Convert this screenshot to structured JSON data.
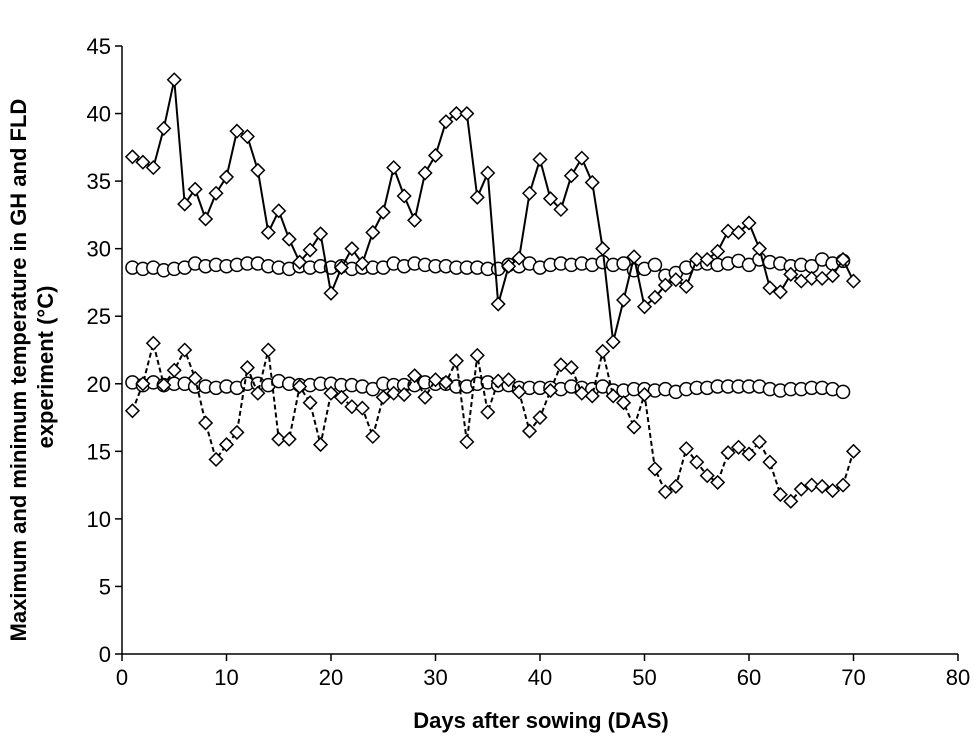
{
  "chart_data": {
    "type": "line",
    "xlabel": "Days after sowing (DAS)",
    "ylabel": [
      "Maximum and minimum temperature in GH and FLD",
      "experiment (°C)"
    ],
    "xlim": [
      0,
      80
    ],
    "ylim": [
      0,
      45
    ],
    "xticks": [
      0,
      10,
      20,
      30,
      40,
      50,
      60,
      70,
      80
    ],
    "yticks": [
      0,
      5,
      10,
      15,
      20,
      25,
      30,
      35,
      40,
      45
    ],
    "grid": false,
    "legend": "none",
    "series": [
      {
        "marker": "circle",
        "line": "solid",
        "x": [
          1,
          2,
          3,
          4,
          5,
          6,
          7,
          8,
          9,
          10,
          11,
          12,
          13,
          14,
          15,
          16,
          17,
          18,
          19,
          20,
          21,
          22,
          23,
          24,
          25,
          26,
          27,
          28,
          29,
          30,
          31,
          32,
          33,
          34,
          35,
          36,
          37,
          38,
          39,
          40,
          41,
          42,
          43,
          44,
          45,
          46,
          47,
          48,
          49,
          50,
          51,
          52,
          53,
          54,
          55,
          56,
          57,
          58,
          59,
          60,
          61,
          62,
          63,
          64,
          65,
          66,
          67,
          68,
          69
        ],
        "y": [
          28.6,
          28.5,
          28.6,
          28.4,
          28.5,
          28.6,
          28.9,
          28.7,
          28.8,
          28.7,
          28.8,
          28.9,
          28.9,
          28.7,
          28.6,
          28.5,
          28.7,
          28.6,
          28.7,
          28.6,
          28.7,
          28.5,
          28.6,
          28.6,
          28.6,
          28.9,
          28.7,
          28.9,
          28.8,
          28.7,
          28.7,
          28.6,
          28.6,
          28.6,
          28.5,
          28.5,
          28.8,
          28.7,
          28.9,
          28.6,
          28.8,
          28.9,
          28.8,
          28.9,
          28.8,
          29.0,
          28.8,
          28.9,
          28.4,
          28.5,
          28.8,
          28.0,
          28.2,
          28.6,
          28.9,
          28.9,
          28.8,
          28.9,
          29.1,
          28.8,
          29.2,
          29.0,
          28.9,
          28.7,
          28.8,
          28.7,
          29.2,
          28.9,
          29.1
        ]
      },
      {
        "marker": "diamond",
        "line": "solid",
        "x": [
          1,
          2,
          3,
          4,
          5,
          6,
          7,
          8,
          9,
          10,
          11,
          12,
          13,
          14,
          15,
          16,
          17,
          18,
          19,
          20,
          21,
          22,
          23,
          24,
          25,
          26,
          27,
          28,
          29,
          30,
          31,
          32,
          33,
          34,
          35,
          36,
          37,
          38,
          39,
          40,
          41,
          42,
          43,
          44,
          45,
          46,
          47,
          48,
          49,
          50,
          51,
          52,
          53,
          54,
          55,
          56,
          57,
          58,
          59,
          60,
          61,
          62,
          63,
          64,
          65,
          66,
          67,
          68,
          69,
          70
        ],
        "y": [
          36.8,
          36.4,
          36.0,
          38.9,
          42.5,
          33.3,
          34.4,
          32.2,
          34.1,
          35.3,
          38.7,
          38.3,
          35.8,
          31.2,
          32.8,
          30.7,
          29.0,
          29.9,
          31.1,
          26.7,
          28.6,
          30.0,
          28.9,
          31.2,
          32.7,
          36.0,
          33.9,
          32.1,
          35.6,
          36.9,
          39.4,
          40.0,
          40.0,
          33.8,
          35.6,
          25.9,
          28.7,
          29.3,
          34.1,
          36.6,
          33.7,
          32.9,
          35.4,
          36.7,
          34.9,
          30.0,
          23.1,
          26.2,
          29.4,
          25.7,
          26.4,
          27.3,
          27.7,
          27.2,
          29.2,
          29.2,
          29.8,
          31.3,
          31.2,
          31.9,
          30.0,
          27.1,
          26.8,
          28.1,
          27.6,
          27.8,
          27.8,
          28.0,
          29.2,
          27.6
        ]
      },
      {
        "marker": "circle",
        "line": "solid",
        "x": [
          1,
          2,
          3,
          4,
          5,
          6,
          7,
          8,
          9,
          10,
          11,
          12,
          13,
          14,
          15,
          16,
          17,
          18,
          19,
          20,
          21,
          22,
          23,
          24,
          25,
          26,
          27,
          28,
          29,
          30,
          31,
          32,
          33,
          34,
          35,
          36,
          37,
          38,
          39,
          40,
          41,
          42,
          43,
          44,
          45,
          46,
          47,
          48,
          49,
          50,
          51,
          52,
          53,
          54,
          55,
          56,
          57,
          58,
          59,
          60,
          61,
          62,
          63,
          64,
          65,
          66,
          67,
          68,
          69
        ],
        "y": [
          20.1,
          19.9,
          20.1,
          19.9,
          20.0,
          20.0,
          19.8,
          19.8,
          19.7,
          19.8,
          19.7,
          20.0,
          20.0,
          19.9,
          20.2,
          20.0,
          19.9,
          19.9,
          20.0,
          20.0,
          19.9,
          19.9,
          19.8,
          19.6,
          20.0,
          19.9,
          19.9,
          19.9,
          20.1,
          20.0,
          20.0,
          19.8,
          19.8,
          20.0,
          20.1,
          19.9,
          19.9,
          19.7,
          19.7,
          19.7,
          19.7,
          19.6,
          19.8,
          19.7,
          19.6,
          19.8,
          19.5,
          19.5,
          19.6,
          19.6,
          19.5,
          19.6,
          19.4,
          19.6,
          19.7,
          19.7,
          19.8,
          19.8,
          19.8,
          19.8,
          19.8,
          19.6,
          19.5,
          19.6,
          19.6,
          19.7,
          19.7,
          19.6,
          19.4
        ]
      },
      {
        "marker": "diamond",
        "line": "dashed",
        "x": [
          1,
          2,
          3,
          4,
          5,
          6,
          7,
          8,
          9,
          10,
          11,
          12,
          13,
          14,
          15,
          16,
          17,
          18,
          19,
          20,
          21,
          22,
          23,
          24,
          25,
          26,
          27,
          28,
          29,
          30,
          31,
          32,
          33,
          34,
          35,
          36,
          37,
          38,
          39,
          40,
          41,
          42,
          43,
          44,
          45,
          46,
          47,
          48,
          49,
          50,
          51,
          52,
          53,
          54,
          55,
          56,
          57,
          58,
          59,
          60,
          61,
          62,
          63,
          64,
          65,
          66,
          67,
          68,
          69,
          70
        ],
        "y": [
          18.0,
          20.0,
          23.0,
          19.9,
          21.0,
          22.5,
          20.4,
          17.1,
          14.4,
          15.5,
          16.4,
          21.2,
          19.3,
          22.5,
          15.9,
          15.9,
          19.8,
          18.6,
          15.5,
          19.3,
          19.0,
          18.3,
          18.2,
          16.1,
          19.0,
          19.3,
          19.2,
          20.6,
          19.0,
          20.3,
          20.1,
          21.7,
          15.7,
          22.1,
          17.9,
          20.2,
          20.3,
          19.4,
          16.5,
          17.5,
          19.5,
          21.4,
          21.2,
          19.3,
          19.1,
          22.4,
          19.1,
          18.6,
          16.8,
          19.2,
          13.7,
          12.0,
          12.4,
          15.2,
          14.2,
          13.2,
          12.7,
          14.9,
          15.3,
          14.8,
          15.7,
          14.2,
          11.8,
          11.3,
          12.2,
          12.5,
          12.4,
          12.1,
          12.5,
          15.0
        ]
      }
    ]
  }
}
